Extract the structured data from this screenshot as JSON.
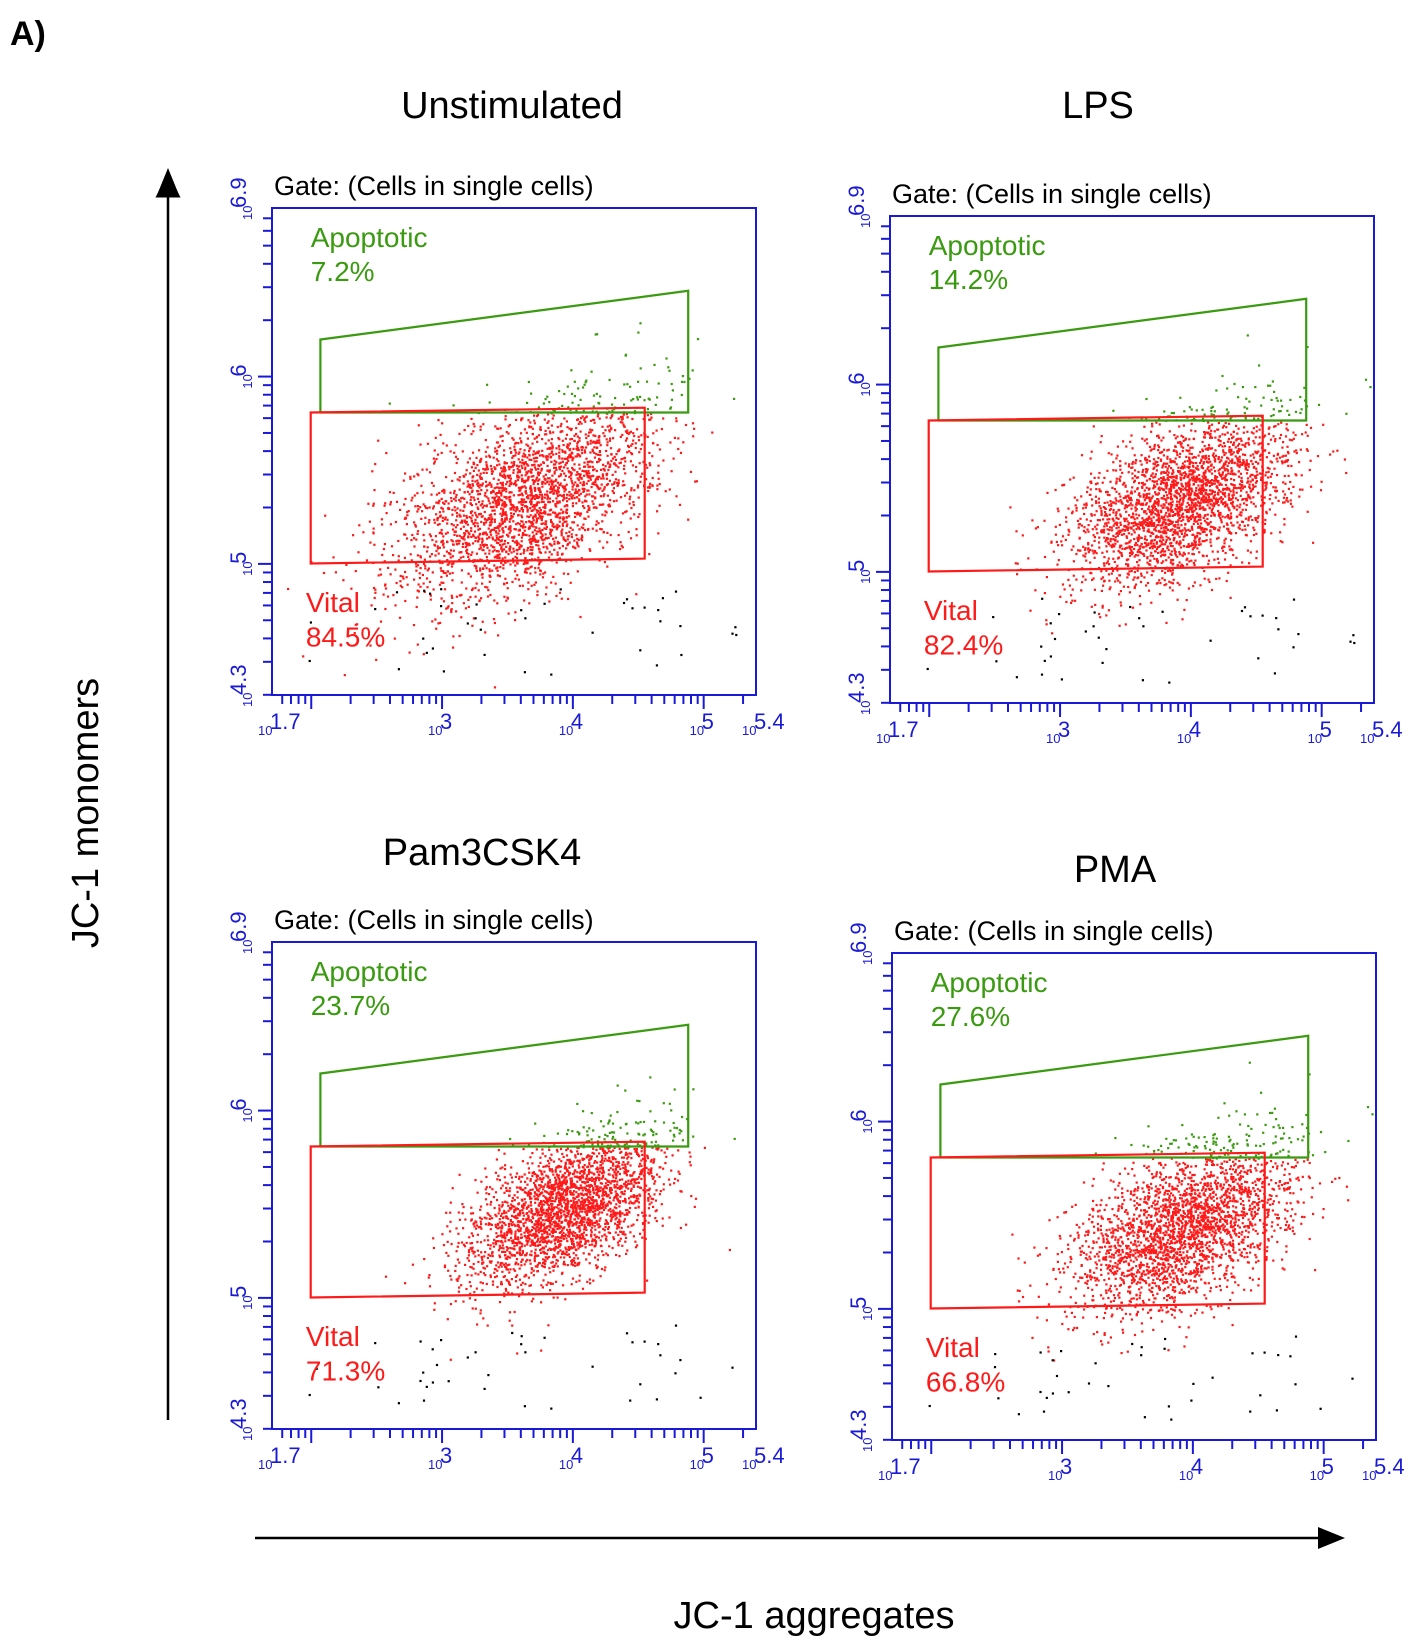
{
  "panel_label": "A)",
  "axis_titles": {
    "y": "JC-1 monomers",
    "x": "JC-1 aggregates"
  },
  "colors": {
    "apoptotic": "#3a9a10",
    "vital": "#ff1a1a",
    "axis": "#1a1ad6",
    "outside": "#000000"
  },
  "chart_data": [
    {
      "type": "scatter",
      "title": "Unstimulated",
      "subtitle": "Gate: (Cells in single cells)",
      "xlabel": "JC-1 aggregates",
      "ylabel": "JC-1 monomers",
      "xscale": "log",
      "yscale": "log",
      "xlim_log10": [
        1.7,
        5.4
      ],
      "ylim_log10": [
        4.3,
        6.9
      ],
      "x_ticks": [
        {
          "base": "10",
          "exp": "1.7"
        },
        {
          "base": "10",
          "exp": "3"
        },
        {
          "base": "10",
          "exp": "4"
        },
        {
          "base": "10",
          "exp": "5"
        },
        {
          "base": "10",
          "exp": "5.4"
        }
      ],
      "y_ticks": [
        {
          "base": "10",
          "exp": "4.3"
        },
        {
          "base": "10",
          "exp": "5"
        },
        {
          "base": "10",
          "exp": "6"
        },
        {
          "base": "10",
          "exp": "6.9"
        }
      ],
      "gates": [
        {
          "name": "Apoptotic",
          "percent": "7.2%",
          "color": "apoptotic"
        },
        {
          "name": "Vital",
          "percent": "84.5%",
          "color": "vital"
        }
      ]
    },
    {
      "type": "scatter",
      "title": "LPS",
      "subtitle": "Gate: (Cells in single cells)",
      "xlabel": "JC-1 aggregates",
      "ylabel": "JC-1 monomers",
      "xscale": "log",
      "yscale": "log",
      "xlim_log10": [
        1.7,
        5.4
      ],
      "ylim_log10": [
        4.3,
        6.9
      ],
      "x_ticks": [
        {
          "base": "10",
          "exp": "1.7"
        },
        {
          "base": "10",
          "exp": "3"
        },
        {
          "base": "10",
          "exp": "4"
        },
        {
          "base": "10",
          "exp": "5"
        },
        {
          "base": "10",
          "exp": "5.4"
        }
      ],
      "y_ticks": [
        {
          "base": "10",
          "exp": "4.3"
        },
        {
          "base": "10",
          "exp": "5"
        },
        {
          "base": "10",
          "exp": "6"
        },
        {
          "base": "10",
          "exp": "6.9"
        }
      ],
      "gates": [
        {
          "name": "Apoptotic",
          "percent": "14.2%",
          "color": "apoptotic"
        },
        {
          "name": "Vital",
          "percent": "82.4%",
          "color": "vital"
        }
      ]
    },
    {
      "type": "scatter",
      "title": "Pam3CSK4",
      "subtitle": "Gate: (Cells in single cells)",
      "xlabel": "JC-1 aggregates",
      "ylabel": "JC-1 monomers",
      "xscale": "log",
      "yscale": "log",
      "xlim_log10": [
        1.7,
        5.4
      ],
      "ylim_log10": [
        4.3,
        6.9
      ],
      "x_ticks": [
        {
          "base": "10",
          "exp": "1.7"
        },
        {
          "base": "10",
          "exp": "3"
        },
        {
          "base": "10",
          "exp": "4"
        },
        {
          "base": "10",
          "exp": "5"
        },
        {
          "base": "10",
          "exp": "5.4"
        }
      ],
      "y_ticks": [
        {
          "base": "10",
          "exp": "4.3"
        },
        {
          "base": "10",
          "exp": "5"
        },
        {
          "base": "10",
          "exp": "6"
        },
        {
          "base": "10",
          "exp": "6.9"
        }
      ],
      "gates": [
        {
          "name": "Apoptotic",
          "percent": "23.7%",
          "color": "apoptotic"
        },
        {
          "name": "Vital",
          "percent": "71.3%",
          "color": "vital"
        }
      ]
    },
    {
      "type": "scatter",
      "title": "PMA",
      "subtitle": "Gate: (Cells in single cells)",
      "xlabel": "JC-1 aggregates",
      "ylabel": "JC-1 monomers",
      "xscale": "log",
      "yscale": "log",
      "xlim_log10": [
        1.7,
        5.4
      ],
      "ylim_log10": [
        4.3,
        6.9
      ],
      "x_ticks": [
        {
          "base": "10",
          "exp": "1.7"
        },
        {
          "base": "10",
          "exp": "3"
        },
        {
          "base": "10",
          "exp": "4"
        },
        {
          "base": "10",
          "exp": "5"
        },
        {
          "base": "10",
          "exp": "5.4"
        }
      ],
      "y_ticks": [
        {
          "base": "10",
          "exp": "4.3"
        },
        {
          "base": "10",
          "exp": "5"
        },
        {
          "base": "10",
          "exp": "6"
        },
        {
          "base": "10",
          "exp": "6.9"
        }
      ],
      "gates": [
        {
          "name": "Apoptotic",
          "percent": "27.6%",
          "color": "apoptotic"
        },
        {
          "name": "Vital",
          "percent": "66.8%",
          "color": "vital"
        }
      ]
    }
  ]
}
